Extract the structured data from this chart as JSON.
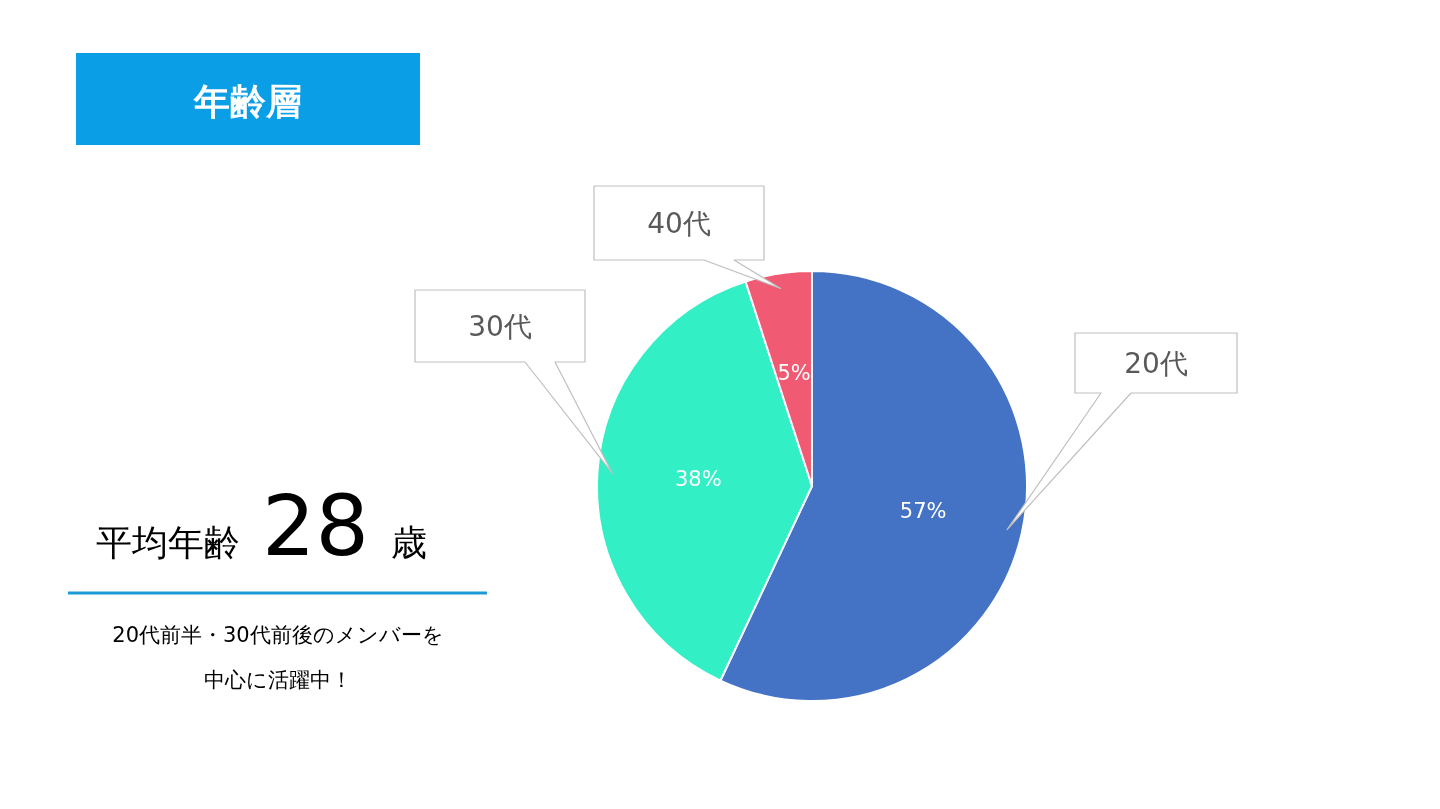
{
  "chart_data": {
    "type": "pie",
    "title": "年齢層",
    "categories": [
      "20代",
      "30代",
      "40代"
    ],
    "values": [
      57,
      38,
      5
    ],
    "colors": [
      "#4472c4",
      "#33efc6",
      "#f05a72"
    ],
    "value_labels": [
      "57%",
      "38%",
      "5%"
    ],
    "annotations": [
      "平均年齢",
      "28",
      "歳",
      "20代前半・30代前後のメンバーを",
      "中心に活躍中！"
    ]
  }
}
